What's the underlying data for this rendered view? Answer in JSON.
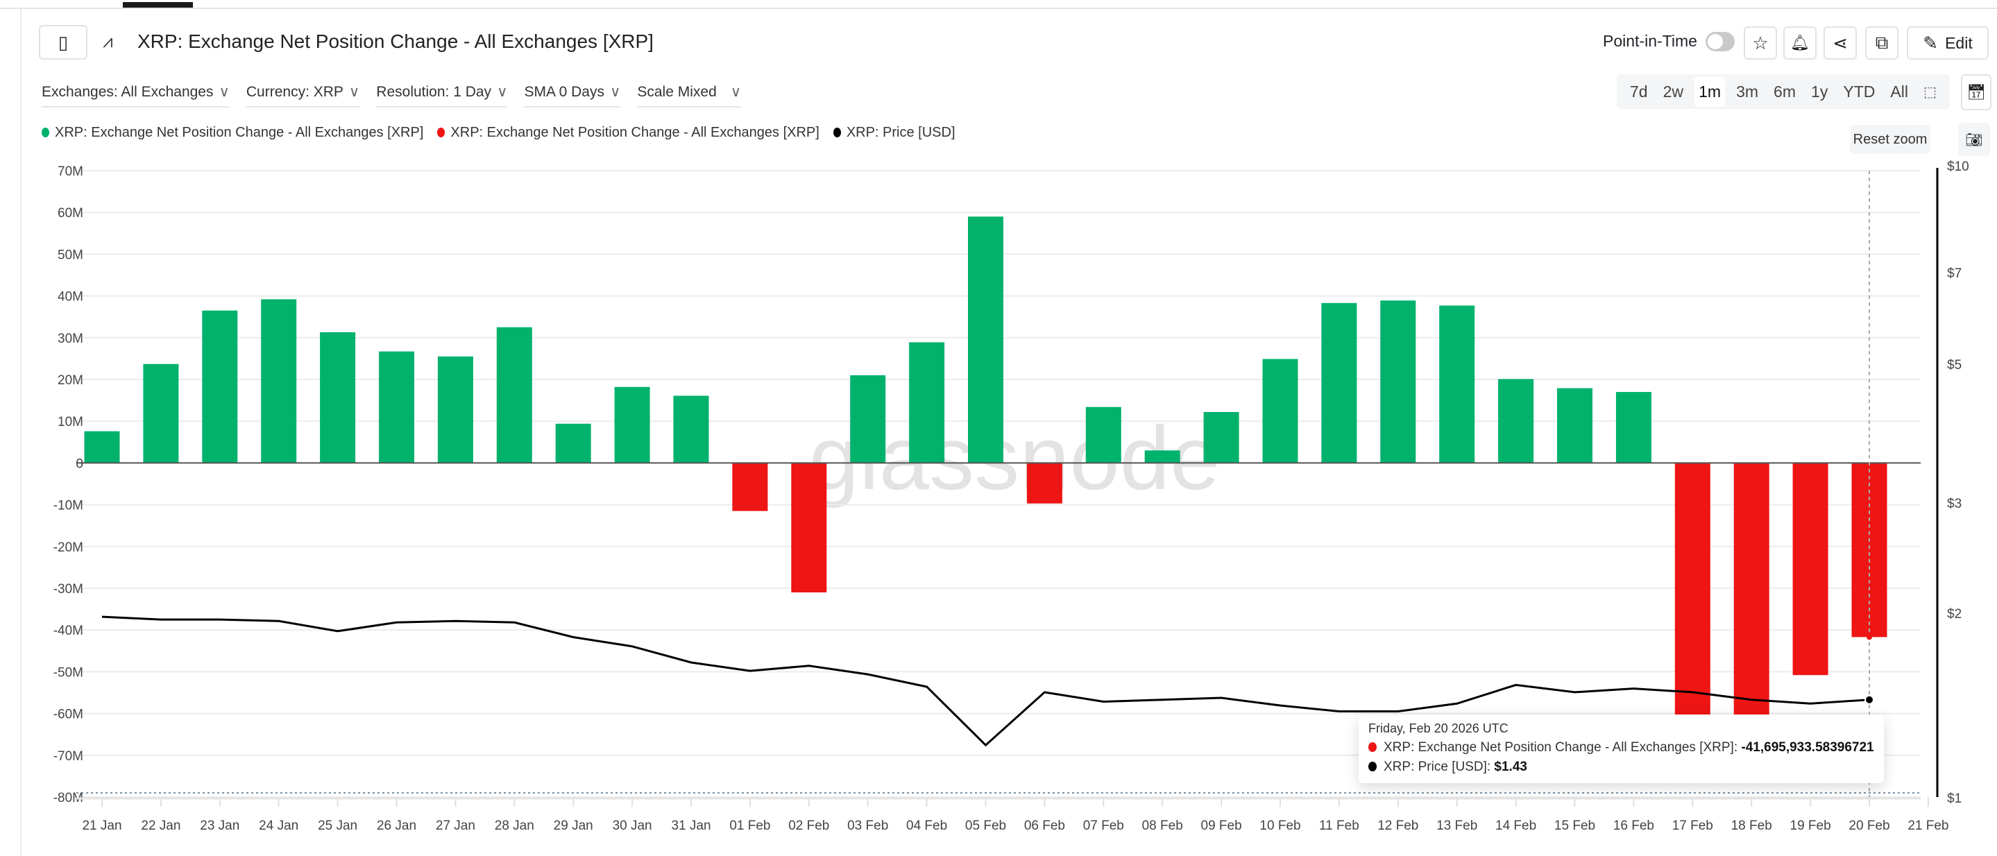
{
  "header": {
    "title": "XRP: Exchange Net Position Change - All Exchanges [XRP]",
    "point_in_time_label": "Point-in-Time",
    "point_in_time_on": false,
    "edit_label": "Edit",
    "icons": [
      "sidebar-toggle-icon",
      "pulse-icon",
      "star-icon",
      "bell-icon",
      "share-icon",
      "copy-icon",
      "pencil-icon"
    ]
  },
  "filters": [
    {
      "label": "Exchanges: All Exchanges"
    },
    {
      "label": "Currency: XRP"
    },
    {
      "label": "Resolution: 1 Day"
    },
    {
      "label": "SMA 0 Days"
    },
    {
      "label": "Scale Mixed"
    }
  ],
  "ranges": {
    "items": [
      "7d",
      "2w",
      "1m",
      "3m",
      "6m",
      "1y",
      "YTD",
      "All"
    ],
    "active": "1m"
  },
  "reset_zoom_label": "Reset zoom",
  "legend": [
    {
      "label": "XRP: Exchange Net Position Change - All Exchanges [XRP]",
      "color": "#00b26b"
    },
    {
      "label": "XRP: Exchange Net Position Change - All Exchanges [XRP]",
      "color": "#ee1515"
    },
    {
      "label": "XRP: Price [USD]",
      "color": "#000000"
    }
  ],
  "watermark": "glassnode",
  "tooltip": {
    "date": "Friday, Feb 20 2026 UTC",
    "series1_label": "XRP: Exchange Net Position Change - All Exchanges [XRP]: ",
    "series1_value": "-41,695,933.58396721",
    "series2_label": "XRP: Price [USD]: ",
    "series2_value": "$1.43"
  },
  "chart_data": {
    "type": "bar",
    "x": [
      "21 Jan",
      "22 Jan",
      "23 Jan",
      "24 Jan",
      "25 Jan",
      "26 Jan",
      "27 Jan",
      "28 Jan",
      "29 Jan",
      "30 Jan",
      "31 Jan",
      "01 Feb",
      "02 Feb",
      "03 Feb",
      "04 Feb",
      "05 Feb",
      "06 Feb",
      "07 Feb",
      "08 Feb",
      "09 Feb",
      "10 Feb",
      "11 Feb",
      "12 Feb",
      "13 Feb",
      "14 Feb",
      "15 Feb",
      "16 Feb",
      "17 Feb",
      "18 Feb",
      "19 Feb",
      "20 Feb"
    ],
    "x_ticks": [
      "21 Jan",
      "22 Jan",
      "23 Jan",
      "24 Jan",
      "25 Jan",
      "26 Jan",
      "27 Jan",
      "28 Jan",
      "29 Jan",
      "30 Jan",
      "31 Jan",
      "01 Feb",
      "02 Feb",
      "03 Feb",
      "04 Feb",
      "05 Feb",
      "06 Feb",
      "07 Feb",
      "08 Feb",
      "09 Feb",
      "10 Feb",
      "11 Feb",
      "12 Feb",
      "13 Feb",
      "14 Feb",
      "15 Feb",
      "16 Feb",
      "17 Feb",
      "18 Feb",
      "19 Feb",
      "20 Feb",
      "21 Feb"
    ],
    "series": [
      {
        "name": "XRP: Exchange Net Position Change - All Exchanges [XRP]",
        "axis": "left",
        "unit": "XRP",
        "values": [
          7600000.0,
          23700000.0,
          36500000.0,
          39200000.0,
          31300000.0,
          26700000.0,
          25500000.0,
          32500000.0,
          9400000.0,
          18200000.0,
          16100000.0,
          -11500000.0,
          -31000000.0,
          21000000.0,
          28900000.0,
          59000000.0,
          -9700000.0,
          13400000.0,
          3000000.0,
          12200000.0,
          24900000.0,
          38300000.0,
          38900000.0,
          37700000.0,
          20100000.0,
          17900000.0,
          17000000.0,
          -63500000.0,
          -71100000.0,
          -50800000.0,
          -41695933.58
        ],
        "positive_color": "#00b26b",
        "negative_color": "#ee1515"
      },
      {
        "name": "XRP: Price [USD]",
        "axis": "right",
        "type": "line",
        "color": "#000000",
        "values": [
          1.94,
          1.92,
          1.92,
          1.91,
          1.84,
          1.9,
          1.91,
          1.9,
          1.8,
          1.74,
          1.64,
          1.59,
          1.62,
          1.57,
          1.5,
          1.21,
          1.47,
          1.42,
          1.43,
          1.44,
          1.4,
          1.37,
          1.37,
          1.41,
          1.51,
          1.47,
          1.49,
          1.47,
          1.43,
          1.41,
          1.43
        ]
      }
    ],
    "left_axis": {
      "ylim": [
        -80000000,
        70000000
      ],
      "ticks": [
        "70M",
        "60M",
        "50M",
        "40M",
        "30M",
        "20M",
        "10M",
        "0",
        "-10M",
        "-20M",
        "-30M",
        "-40M",
        "-50M",
        "-60M",
        "-70M",
        "-80M"
      ]
    },
    "right_axis": {
      "scale": "log",
      "ylim": [
        1,
        10
      ],
      "ticks": [
        {
          "v": 10,
          "label": "$10"
        },
        {
          "v": 7,
          "label": "$7"
        },
        {
          "v": 5,
          "label": "$5"
        },
        {
          "v": 3,
          "label": "$3"
        },
        {
          "v": 2,
          "label": "$2"
        },
        {
          "v": 1,
          "label": "$1"
        }
      ]
    },
    "grid": true,
    "legend_position": "top-left"
  }
}
